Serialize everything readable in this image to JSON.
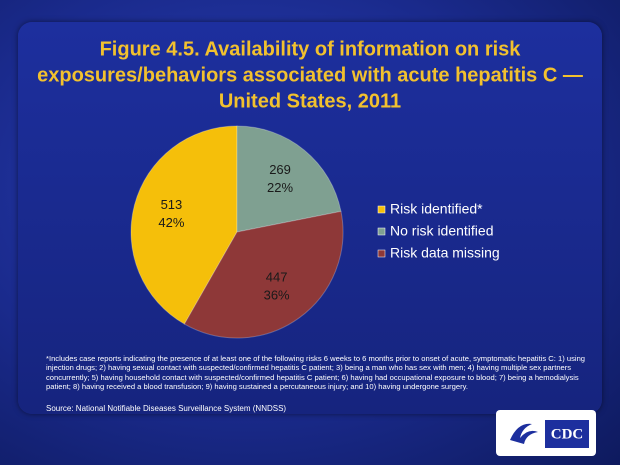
{
  "chart_data": {
    "type": "pie",
    "title": [
      "Figure 4.5. Availability of information on risk",
      "exposures/behaviors associated with acute hepatitis C —",
      "United States, 2011"
    ],
    "categories": [
      "Risk identified*",
      "No risk identified",
      "Risk data missing"
    ],
    "values": [
      513,
      269,
      447
    ],
    "percent_labels": [
      "42%",
      "22%",
      "36%"
    ],
    "colors": [
      "#f5bf0a",
      "#7fa091",
      "#8e3838"
    ],
    "legend": "right",
    "footnote": "*Includes case reports indicating the presence of at least one of the following risks 6 weeks to 6 months prior to onset of acute, symptomatic hepatitis C: 1) using injection drugs; 2) having sexual contact with suspected/confirmed hepatitis C patient; 3) being a man who has sex with men; 4) having multiple sex partners concurrently; 5) having household contact with suspected/confirmed hepatitis C patient; 6) having had occupational exposure to blood; 7) being a hemodialysis patient; 8) having received a blood transfusion; 9) having sustained a percutaneous injury; and 10) having undergone surgery.",
    "source": "Source: National Notifiable Diseases Surveillance System (NNDSS)",
    "logo_text": "CDC"
  }
}
